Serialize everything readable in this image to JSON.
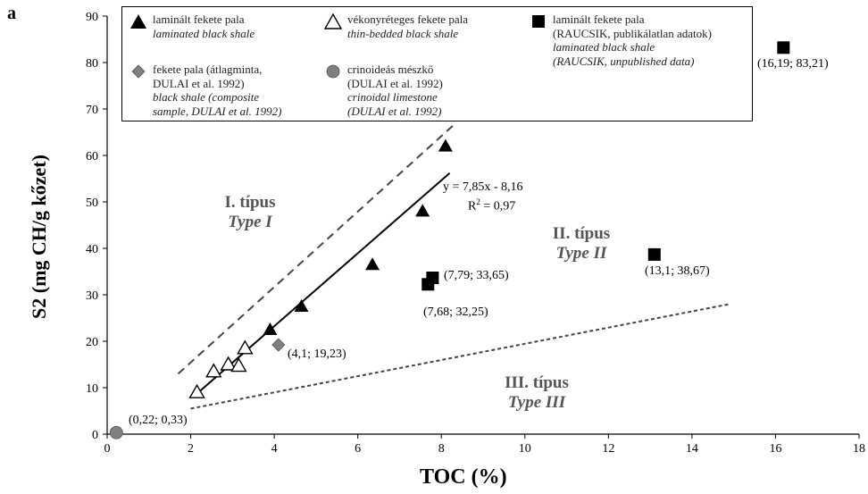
{
  "panel_label": "a",
  "chart_data": {
    "type": "scatter",
    "xlabel": "TOC (%)",
    "ylabel": "S2 (mg CH/g kőzet)",
    "xlim": [
      0,
      18
    ],
    "ylim": [
      0,
      90
    ],
    "xticks": [
      "0",
      "2",
      "4",
      "6",
      "8",
      "10",
      "12",
      "14",
      "16",
      "18"
    ],
    "yticks": [
      "0",
      "10",
      "20",
      "30",
      "40",
      "50",
      "60",
      "70",
      "80",
      "90"
    ],
    "grid": false,
    "legend_position": "top",
    "series": [
      {
        "name_hu": "laminált fekete pala",
        "name_en": "laminated black shale",
        "marker": "filled-triangle",
        "color": "#000000",
        "points": [
          [
            3.9,
            22.5
          ],
          [
            4.65,
            27.5
          ],
          [
            6.35,
            36.5
          ],
          [
            7.55,
            48
          ],
          [
            8.1,
            62
          ]
        ]
      },
      {
        "name_hu": "vékonyréteges fekete pala",
        "name_en": "thin-bedded black shale",
        "marker": "open-triangle",
        "color": "#000000",
        "points": [
          [
            2.15,
            9
          ],
          [
            2.55,
            13.5
          ],
          [
            2.9,
            15
          ],
          [
            3.15,
            14.7
          ],
          [
            3.3,
            18.5
          ]
        ]
      },
      {
        "name_hu": "laminált fekete pala",
        "name_hu_2": "(RAUCSIK, publikálatlan adatok)",
        "name_en": "laminated black shale",
        "name_en_2": "(RAUCSIK, unpublished data)",
        "marker": "filled-square",
        "color": "#000000",
        "points": [
          [
            16.19,
            83.21
          ],
          [
            7.79,
            33.65
          ],
          [
            7.68,
            32.25
          ],
          [
            13.1,
            38.67
          ]
        ]
      },
      {
        "name_hu": "fekete pala (átlagminta,",
        "name_hu_2": "DULAI et al. 1992)",
        "name_en": "black shale (composite",
        "name_en_2": "sample, DULAI et al. 1992)",
        "marker": "diamond",
        "color": "#808080",
        "points": [
          [
            4.1,
            19.23
          ]
        ]
      },
      {
        "name_hu": "crinoideás mészkő",
        "name_hu_2": "(DULAI et al. 1992)",
        "name_en": "crinoidal limestone",
        "name_en_2": "(DULAI et al. 1992)",
        "marker": "circle",
        "color": "#808080",
        "points": [
          [
            0.22,
            0.33
          ]
        ]
      }
    ],
    "point_labels": [
      {
        "x": 16.19,
        "y": 83.21,
        "text": "(16,19; 83,21)"
      },
      {
        "x": 7.79,
        "y": 33.65,
        "text": "(7,79; 33,65)"
      },
      {
        "x": 7.68,
        "y": 32.25,
        "text": "(7,68; 32,25)"
      },
      {
        "x": 13.1,
        "y": 38.67,
        "text": "(13,1; 38,67)"
      },
      {
        "x": 4.1,
        "y": 19.23,
        "text": "(4,1; 19,23)"
      },
      {
        "x": 0.22,
        "y": 0.33,
        "text": "(0,22; 0,33)"
      }
    ],
    "regression": {
      "slope": 7.85,
      "intercept": -8.16,
      "x_range": [
        2.2,
        8.2
      ],
      "equation": "y = 7,85x - 8,16",
      "r2_prefix": "R",
      "r2_exp": "2",
      "r2_suffix": " = 0,97"
    },
    "boundary_lines": [
      {
        "name": "Type I / II boundary",
        "style": "dashed",
        "from": [
          1.7,
          13
        ],
        "to": [
          8.35,
          67
        ]
      },
      {
        "name": "Type II / III boundary",
        "style": "dashed-fine",
        "from": [
          2,
          5.5
        ],
        "to": [
          14.9,
          28
        ]
      }
    ],
    "regions": [
      {
        "hu": "I. típus",
        "en": "Type I"
      },
      {
        "hu": "II. típus",
        "en": "Type II"
      },
      {
        "hu": "III. típus",
        "en": "Type III"
      }
    ]
  }
}
